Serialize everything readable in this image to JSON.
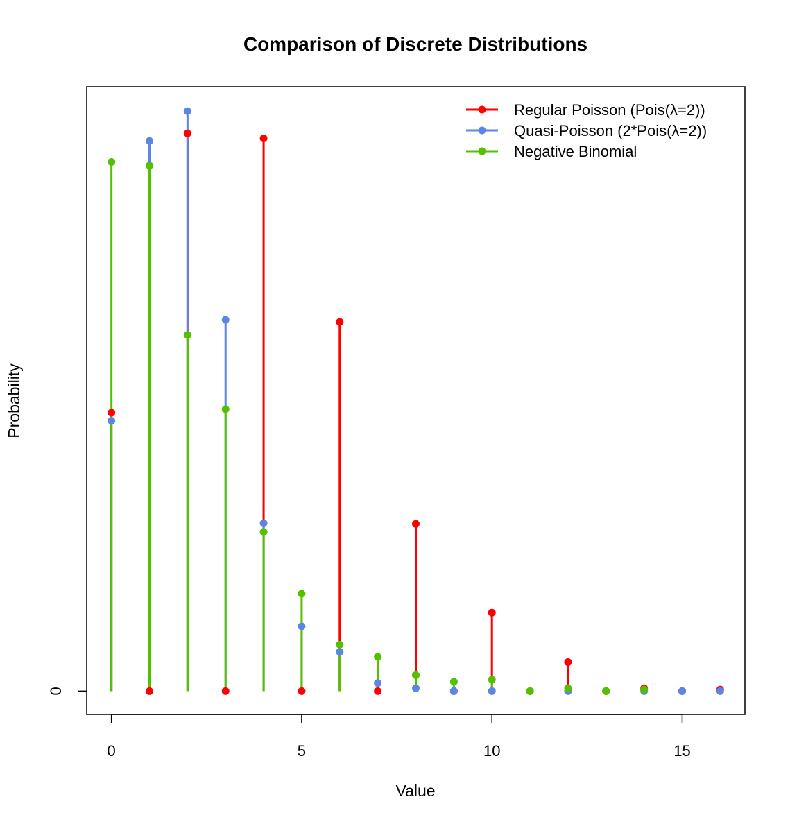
{
  "chart_data": {
    "type": "line",
    "subtype": "lollipop",
    "title": "Comparison of Discrete Distributions",
    "xlabel": "Value",
    "ylabel": "Probability",
    "xlim": [
      -0.65,
      16.65
    ],
    "ylim": [
      -0.0107,
      0.2772
    ],
    "x_ticks": [
      0,
      5,
      10,
      15
    ],
    "y_ticks": [
      0
    ],
    "legend_position": "top-right",
    "series": [
      {
        "name": "Regular Poisson (Pois(λ=2))",
        "color": "#ff0000",
        "x": [
          0,
          1,
          2,
          3,
          4,
          5,
          6,
          7,
          8,
          9,
          10,
          11,
          12,
          13,
          14,
          15,
          16
        ],
        "y": [
          0.1277,
          0,
          0.2558,
          0,
          0.2535,
          0,
          0.1693,
          0,
          0.0767,
          0,
          0.036,
          0,
          0.0133,
          0,
          0.0013,
          0,
          0.0007
        ]
      },
      {
        "name": "Quasi-Poisson (2*Pois(λ=2))",
        "color": "#5b86e5",
        "x": [
          0,
          1,
          2,
          3,
          4,
          5,
          6,
          7,
          8,
          9,
          10,
          11,
          12,
          13,
          14,
          15,
          16
        ],
        "y": [
          0.124,
          0.2523,
          0.266,
          0.1703,
          0.077,
          0.0297,
          0.018,
          0.0037,
          0.0013,
          0,
          0,
          0,
          0,
          0,
          0,
          0,
          0
        ]
      },
      {
        "name": "Negative Binomial",
        "color": "#55c000",
        "x": [
          0,
          1,
          2,
          3,
          4,
          5,
          6,
          7,
          8,
          9,
          10,
          11,
          12,
          13,
          14
        ],
        "y": [
          0.2427,
          0.241,
          0.1633,
          0.1293,
          0.073,
          0.0447,
          0.0213,
          0.0157,
          0.0073,
          0.0043,
          0.0053,
          0,
          0.0013,
          0,
          0.0007
        ]
      }
    ]
  }
}
